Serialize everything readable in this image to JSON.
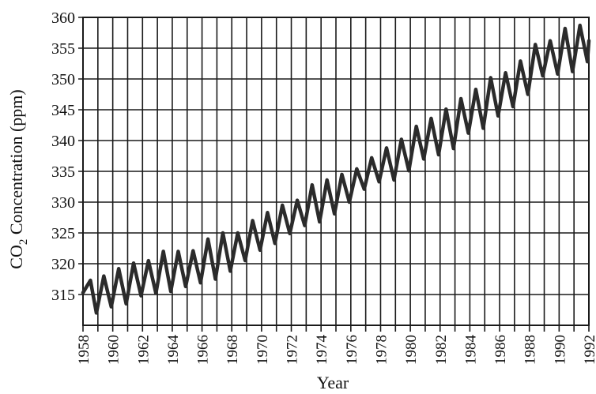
{
  "chart_data": {
    "type": "line",
    "title": "",
    "xlabel": "Year",
    "ylabel_main": "CO",
    "ylabel_sub": "2",
    "ylabel_rest": " Concentration (ppm)",
    "xlim": [
      1958,
      1992
    ],
    "ylim": [
      310,
      360
    ],
    "x_ticks": [
      1958,
      1960,
      1962,
      1964,
      1966,
      1968,
      1970,
      1972,
      1974,
      1976,
      1978,
      1980,
      1982,
      1984,
      1986,
      1988,
      1990,
      1992
    ],
    "y_ticks": [
      315,
      320,
      325,
      330,
      335,
      340,
      345,
      350,
      355,
      360
    ],
    "grid": true,
    "grid_x_step_years": 1,
    "series": [
      {
        "x": [
          1958.0,
          1958.5,
          1958.9,
          1959.4,
          1959.9,
          1960.4,
          1960.9,
          1961.4,
          1961.9,
          1962.4,
          1962.9,
          1963.4,
          1963.9,
          1964.4,
          1964.9,
          1965.4,
          1965.9,
          1966.4,
          1966.9,
          1967.4,
          1967.9,
          1968.4,
          1968.9,
          1969.4,
          1969.9,
          1970.4,
          1970.9,
          1971.4,
          1971.9,
          1972.4,
          1972.9,
          1973.4,
          1973.9,
          1974.4,
          1974.9,
          1975.4,
          1975.9,
          1976.4,
          1976.9,
          1977.4,
          1977.9,
          1978.4,
          1978.9,
          1979.4,
          1979.9,
          1980.4,
          1980.9,
          1981.4,
          1981.9,
          1982.4,
          1982.9,
          1983.4,
          1983.9,
          1984.4,
          1984.9,
          1985.4,
          1985.9,
          1986.4,
          1986.9,
          1987.4,
          1987.9,
          1988.4,
          1988.9,
          1989.4,
          1989.9,
          1990.4,
          1990.9,
          1991.4,
          1991.9,
          1992.0
        ],
        "values": [
          315.3,
          317.3,
          312.0,
          318.0,
          313.0,
          319.2,
          313.5,
          320.1,
          314.8,
          320.5,
          315.2,
          322.0,
          315.5,
          322.0,
          316.3,
          322.1,
          316.9,
          324.0,
          317.5,
          325.0,
          318.8,
          325.0,
          320.5,
          327.0,
          322.2,
          328.3,
          323.3,
          329.5,
          324.9,
          330.3,
          326.2,
          332.8,
          326.8,
          333.6,
          328.1,
          334.5,
          330.0,
          335.4,
          332.1,
          337.2,
          333.3,
          338.8,
          333.6,
          340.2,
          335.1,
          342.3,
          337.0,
          343.6,
          337.7,
          345.1,
          338.7,
          346.8,
          341.2,
          348.3,
          342.0,
          350.2,
          344.0,
          351.0,
          345.5,
          352.9,
          347.5,
          355.6,
          350.5,
          356.2,
          350.8,
          358.2,
          351.2,
          358.7,
          352.8,
          356.2
        ]
      }
    ]
  }
}
